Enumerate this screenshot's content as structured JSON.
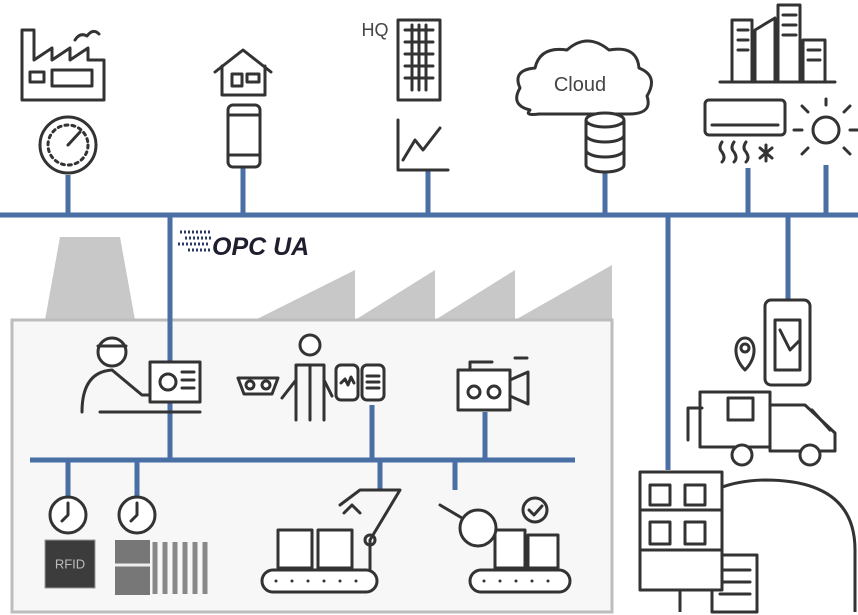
{
  "nodes": {
    "hq": {
      "label": "HQ"
    },
    "cloud": {
      "label": "Cloud"
    },
    "protocol": {
      "label": "OPC UA"
    },
    "rfid": {
      "label": "RFID"
    }
  }
}
